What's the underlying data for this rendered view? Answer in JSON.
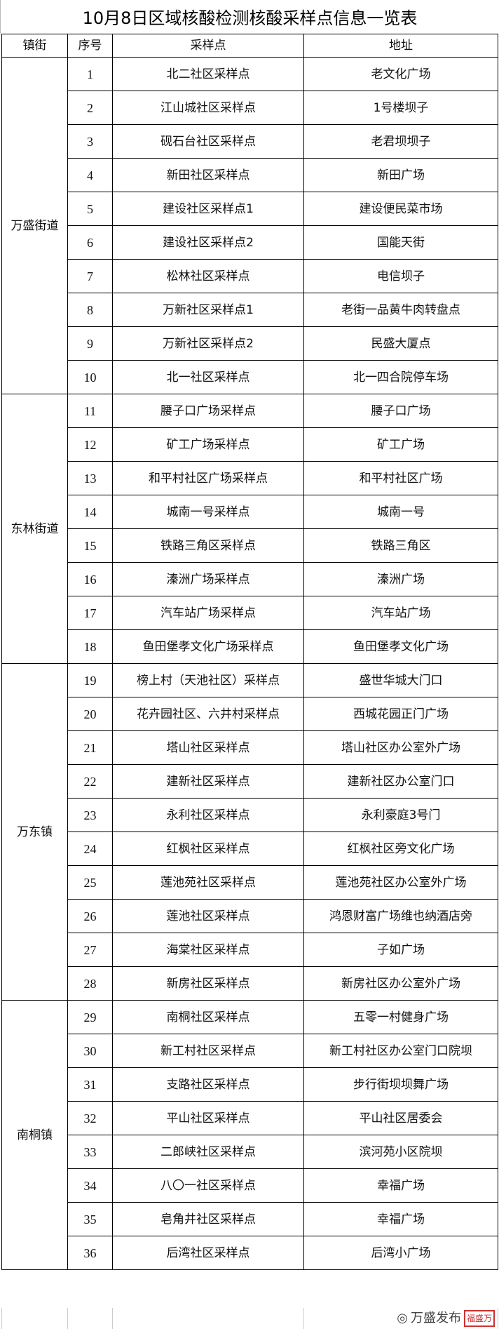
{
  "title": "10月8日区域核酸检测核酸采样点信息一览表",
  "headers": [
    "镇街",
    "序号",
    "采样点",
    "地址"
  ],
  "groups": [
    {
      "name": "万盛街道",
      "rows": [
        [
          "1",
          "北二社区采样点",
          "老文化广场"
        ],
        [
          "2",
          "江山城社区采样点",
          "1号楼坝子"
        ],
        [
          "3",
          "砚石台社区采样点",
          "老君坝坝子"
        ],
        [
          "4",
          "新田社区采样点",
          "新田广场"
        ],
        [
          "5",
          "建设社区采样点1",
          "建设便民菜市场"
        ],
        [
          "6",
          "建设社区采样点2",
          "国能天街"
        ],
        [
          "7",
          "松林社区采样点",
          "电信坝子"
        ],
        [
          "8",
          "万新社区采样点1",
          "老街一品黄牛肉转盘点"
        ],
        [
          "9",
          "万新社区采样点2",
          "民盛大厦点"
        ],
        [
          "10",
          "北一社区采样点",
          "北一四合院停车场"
        ]
      ]
    },
    {
      "name": "东林街道",
      "rows": [
        [
          "11",
          "腰子口广场采样点",
          "腰子口广场"
        ],
        [
          "12",
          "矿工广场采样点",
          "矿工广场"
        ],
        [
          "13",
          "和平村社区广场采样点",
          "和平村社区广场"
        ],
        [
          "14",
          "城南一号采样点",
          "城南一号"
        ],
        [
          "15",
          "铁路三角区采样点",
          "铁路三角区"
        ],
        [
          "16",
          "溱洲广场采样点",
          "溱洲广场"
        ],
        [
          "17",
          "汽车站广场采样点",
          "汽车站广场"
        ],
        [
          "18",
          "鱼田堡孝文化广场采样点",
          "鱼田堡孝文化广场"
        ]
      ]
    },
    {
      "name": "万东镇",
      "rows": [
        [
          "19",
          "榜上村（天池社区）采样点",
          "盛世华城大门口"
        ],
        [
          "20",
          "花卉园社区、六井村采样点",
          "西城花园正门广场"
        ],
        [
          "21",
          "塔山社区采样点",
          "塔山社区办公室外广场"
        ],
        [
          "22",
          "建新社区采样点",
          "建新社区办公室门口"
        ],
        [
          "23",
          "永利社区采样点",
          "永利豪庭3号门"
        ],
        [
          "24",
          "红枫社区采样点",
          "红枫社区旁文化广场"
        ],
        [
          "25",
          "莲池苑社区采样点",
          "莲池苑社区办公室外广场"
        ],
        [
          "26",
          "莲池社区采样点",
          "鸿恩财富广场维也纳酒店旁"
        ],
        [
          "27",
          "海棠社区采样点",
          "子如广场"
        ],
        [
          "28",
          "新房社区采样点",
          "新房社区办公室外广场"
        ]
      ]
    },
    {
      "name": "南桐镇",
      "rows": [
        [
          "29",
          "南桐社区采样点",
          "五零一村健身广场"
        ],
        [
          "30",
          "新工村社区采样点",
          "新工村社区办公室门口院坝"
        ],
        [
          "31",
          "支路社区采样点",
          "步行街坝坝舞广场"
        ],
        [
          "32",
          "平山社区采样点",
          "平山社区居委会"
        ],
        [
          "33",
          "二郎峡社区采样点",
          "滨河苑小区院坝"
        ],
        [
          "34",
          "八〇一社区采样点",
          "幸福广场"
        ],
        [
          "35",
          "皂角井社区采样点",
          "幸福广场"
        ],
        [
          "36",
          "后湾社区采样点",
          "后湾小广场"
        ]
      ]
    }
  ],
  "watermark": {
    "label": "万盛发布",
    "stamp": "福盛万"
  }
}
